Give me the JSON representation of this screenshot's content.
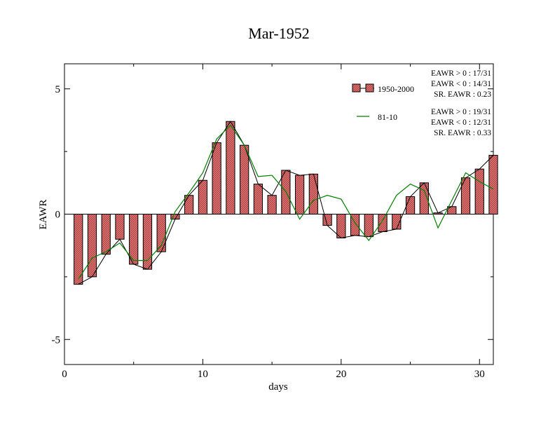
{
  "chart_data": {
    "type": "bar",
    "title": "Mar-1952",
    "xlabel": "days",
    "ylabel": "EAWR",
    "xlim": [
      0,
      31
    ],
    "ylim": [
      -6,
      6
    ],
    "xticks": [
      0,
      10,
      20,
      30
    ],
    "yticks": [
      -5,
      0,
      5
    ],
    "grid": false,
    "legend_position": "top-right",
    "series": [
      {
        "name": "1950-2000",
        "kind": "bar",
        "color": "#e07070",
        "x": [
          1,
          2,
          3,
          4,
          5,
          6,
          7,
          8,
          9,
          10,
          11,
          12,
          13,
          14,
          15,
          16,
          17,
          18,
          19,
          20,
          21,
          22,
          23,
          24,
          25,
          26,
          27,
          28,
          29,
          30,
          31
        ],
        "values": [
          -2.8,
          -2.5,
          -1.6,
          -1.0,
          -2.0,
          -2.2,
          -1.5,
          -0.2,
          0.75,
          1.35,
          2.85,
          3.7,
          2.75,
          1.2,
          0.75,
          1.75,
          1.55,
          1.6,
          -0.45,
          -0.95,
          -0.85,
          -0.9,
          -0.7,
          -0.6,
          0.7,
          1.25,
          0.05,
          0.3,
          1.45,
          1.8,
          2.35
        ]
      },
      {
        "name": "81-10",
        "kind": "line",
        "color": "#008000",
        "x": [
          1,
          2,
          3,
          4,
          5,
          6,
          7,
          8,
          9,
          10,
          11,
          12,
          13,
          14,
          15,
          16,
          17,
          18,
          19,
          20,
          21,
          22,
          23,
          24,
          25,
          26,
          27,
          28,
          29,
          30,
          31
        ],
        "values": [
          -2.6,
          -1.75,
          -1.5,
          -1.15,
          -1.85,
          -1.85,
          -1.25,
          0.1,
          0.85,
          1.65,
          3.0,
          3.55,
          2.75,
          1.5,
          1.55,
          0.9,
          -0.2,
          0.55,
          0.75,
          0.6,
          -0.35,
          -1.05,
          -0.25,
          0.75,
          1.2,
          0.95,
          -0.55,
          0.55,
          1.65,
          1.3,
          1.0
        ]
      }
    ],
    "bar_outline_line_color": "#000000",
    "stats": [
      {
        "lines": [
          "EAWR > 0 : 17/31",
          "EAWR < 0 : 14/31",
          "SR. EAWR :  0.23"
        ]
      },
      {
        "lines": [
          "EAWR > 0 : 19/31",
          "EAWR < 0 : 12/31",
          "SR. EAWR :  0.33"
        ]
      }
    ]
  }
}
